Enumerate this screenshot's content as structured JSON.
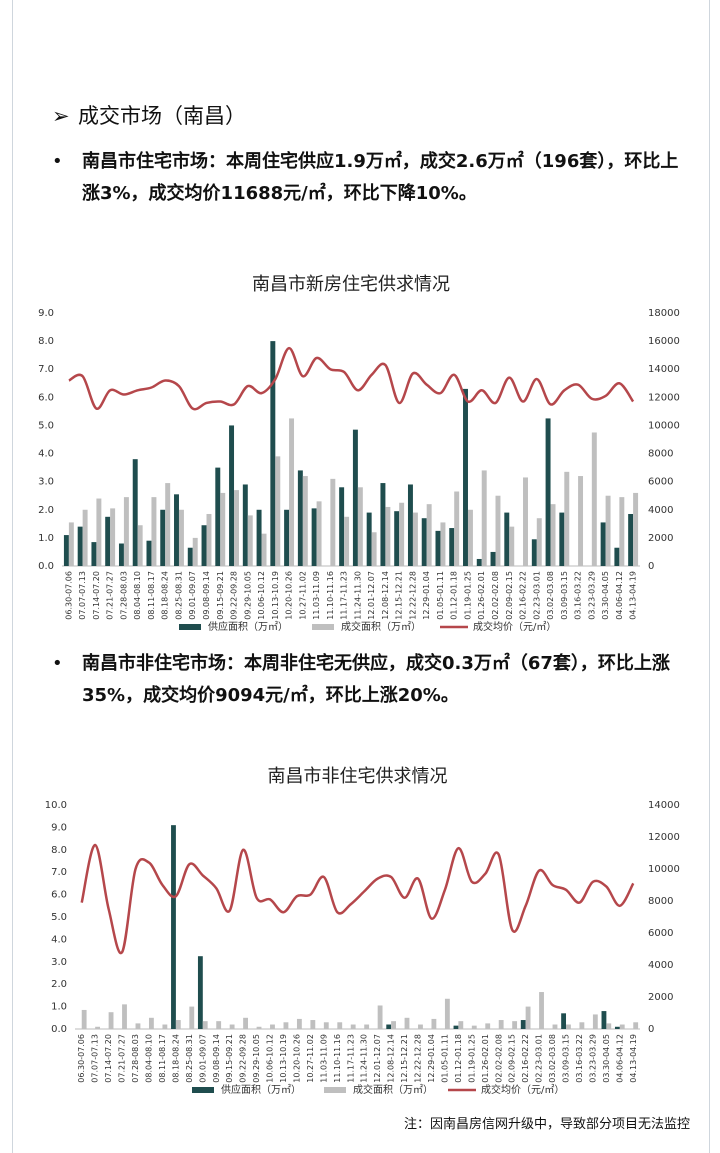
{
  "heading": "成交市场（南昌）",
  "paragraphs": [
    "南昌市住宅市场：本周住宅供应1.9万㎡，成交2.6万㎡（196套），环比上涨3%，成交均价11688元/㎡，环比下降10%。",
    "南昌市非住宅市场：本周非住宅无供应，成交0.3万㎡（67套），环比上涨35%，成交均价9094元/㎡，环比上涨20%。"
  ],
  "note": "注：因南昌房信网升级中，导致部分项目无法监控",
  "chart_data": [
    {
      "type": "combo",
      "title": "南昌市新房住宅供求情况",
      "categories": [
        "06.30-07.06",
        "07.07-07.13",
        "07.14-07.20",
        "07.21-07.27",
        "07.28-08.03",
        "08.04-08.10",
        "08.11-08.17",
        "08.18-08.24",
        "08.25-08.31",
        "09.01-09.07",
        "09.08-09.14",
        "09.15-09.21",
        "09.22-09.28",
        "09.29-10.05",
        "10.06-10.12",
        "10.13-10.19",
        "10.20-10.26",
        "10.27-11.02",
        "11.03-11.09",
        "11.10-11.16",
        "11.17-11.23",
        "11.24-11.30",
        "12.01-12.07",
        "12.08-12.14",
        "12.15-12.21",
        "12.22-12.28",
        "12.29-01.04",
        "01.05-01.11",
        "01.12-01.18",
        "01.19-01.25",
        "01.26-02.01",
        "02.02-02.08",
        "02.09-02.15",
        "02.16-02.22",
        "02.23-03.01",
        "03.02-03.08",
        "03.09-03.15",
        "03.16-03.22",
        "03.23-03.29",
        "03.30-04.05",
        "04.06-04.12",
        "04.13-04.19"
      ],
      "series": [
        {
          "name": "供应面积（万㎡）",
          "type": "bar",
          "color": "#1f4d4e",
          "values": [
            1.1,
            1.4,
            0.85,
            1.75,
            0.8,
            3.8,
            0.9,
            2.0,
            2.55,
            0.65,
            1.45,
            3.5,
            5.0,
            2.9,
            2.0,
            8.0,
            2.0,
            3.4,
            2.05,
            0,
            2.8,
            4.85,
            1.9,
            2.95,
            1.95,
            2.9,
            1.7,
            1.25,
            1.35,
            6.3,
            0.25,
            0.5,
            1.9,
            0,
            0.95,
            5.25,
            1.9,
            0,
            0,
            1.55,
            0.65,
            1.85
          ]
        },
        {
          "name": "成交面积（万㎡）",
          "type": "bar",
          "color": "#bfbfbf",
          "values": [
            1.55,
            2.0,
            2.4,
            2.05,
            2.45,
            1.45,
            2.45,
            2.95,
            2.0,
            1.0,
            1.85,
            2.6,
            2.7,
            1.8,
            1.15,
            3.9,
            5.25,
            3.2,
            2.3,
            3.1,
            1.75,
            2.8,
            1.2,
            2.1,
            2.25,
            1.9,
            2.2,
            1.55,
            2.65,
            2.0,
            3.4,
            2.5,
            1.4,
            3.15,
            1.7,
            2.2,
            3.35,
            3.2,
            4.75,
            2.5,
            2.45,
            2.6
          ]
        },
        {
          "name": "成交均价（元/㎡）",
          "type": "line",
          "axis": "y2",
          "color": "#b5474b",
          "values": [
            13200,
            13500,
            11200,
            12500,
            12200,
            12500,
            12700,
            13200,
            12800,
            11200,
            11600,
            11700,
            11500,
            12800,
            12300,
            13300,
            15500,
            13500,
            14800,
            14000,
            13800,
            12500,
            13600,
            14300,
            11600,
            13700,
            12900,
            12300,
            13600,
            11700,
            12500,
            11600,
            13400,
            11700,
            13300,
            11500,
            12500,
            12900,
            11900,
            12100,
            13000,
            11700
          ]
        }
      ],
      "ylim": [
        0,
        9
      ],
      "yticks": [
        {
          "value": 0,
          "label": "0.0"
        },
        {
          "value": 1,
          "label": "1.0"
        },
        {
          "value": 2,
          "label": "2.0"
        },
        {
          "value": 3,
          "label": "3.0"
        },
        {
          "value": 4,
          "label": "4.0"
        },
        {
          "value": 5,
          "label": "5.0"
        },
        {
          "value": 6,
          "label": "6.0"
        },
        {
          "value": 7,
          "label": "7.0"
        },
        {
          "value": 8,
          "label": "8.0"
        },
        {
          "value": 9,
          "label": "9.0"
        }
      ],
      "y2lim": [
        0,
        18000
      ],
      "y2ticks": [
        0,
        2000,
        4000,
        6000,
        8000,
        10000,
        12000,
        14000,
        16000,
        18000
      ],
      "grid": false,
      "legend": "bottom"
    },
    {
      "type": "combo",
      "title": "南昌市非住宅供求情况",
      "categories": [
        "06.30-07.06",
        "07.07-07.13",
        "07.14-07.20",
        "07.21-07.27",
        "07.28-08.03",
        "08.04-08.10",
        "08.11-08.17",
        "08.18-08.24",
        "08.25-08.31",
        "09.01-09.07",
        "09.08-09.14",
        "09.15-09.21",
        "09.22-09.28",
        "09.29-10.05",
        "10.06-10.12",
        "10.13-10.19",
        "10.20-10.26",
        "10.27-11.02",
        "11.03-11.09",
        "11.10-11.16",
        "11.17-11.23",
        "11.24-11.30",
        "12.01-12.07",
        "12.08-12.14",
        "12.15-12.21",
        "12.22-12.28",
        "12.29-01.04",
        "01.05-01.11",
        "01.12-01.18",
        "01.19-01.25",
        "01.26-02.01",
        "02.02-02.08",
        "02.09-02.15",
        "02.16-02.22",
        "02.23-03.01",
        "03.02-03.08",
        "03.09-03.15",
        "03.16-03.22",
        "03.23-03.29",
        "03.30-04.05",
        "04.06-04.12",
        "04.13-04.19"
      ],
      "series": [
        {
          "name": "供应面积（万㎡）",
          "type": "bar",
          "color": "#1f4d4e",
          "values": [
            0,
            0,
            0,
            0,
            0,
            0,
            0,
            9.1,
            0,
            3.25,
            0,
            0,
            0,
            0,
            0,
            0,
            0,
            0,
            0,
            0,
            0,
            0,
            0,
            0.2,
            0,
            0,
            0,
            0,
            0.15,
            0,
            0,
            0,
            0,
            0.4,
            0,
            0,
            0.7,
            0,
            0,
            0.8,
            0.1,
            0
          ]
        },
        {
          "name": "成交面积（万㎡）",
          "type": "bar",
          "color": "#bfbfbf",
          "values": [
            0.85,
            0.1,
            0.75,
            1.1,
            0.25,
            0.5,
            0.2,
            0.4,
            1.0,
            0.35,
            0.35,
            0.2,
            0.5,
            0.1,
            0.2,
            0.3,
            0.45,
            0.4,
            0.3,
            0.3,
            0.2,
            0.2,
            1.05,
            0.35,
            0.5,
            0.2,
            0.45,
            1.35,
            0.35,
            0.15,
            0.25,
            0.4,
            0.35,
            1.0,
            1.65,
            0.2,
            0.2,
            0.3,
            0.65,
            0.25,
            0.2,
            0.3
          ]
        },
        {
          "name": "成交均价（元/㎡）",
          "type": "line",
          "axis": "y2",
          "color": "#b5474b",
          "values": [
            7900,
            11500,
            7500,
            4800,
            10000,
            10400,
            9000,
            8300,
            10300,
            9600,
            8800,
            7400,
            11200,
            8200,
            8100,
            7300,
            8300,
            8400,
            9500,
            7300,
            7800,
            8600,
            9400,
            9500,
            8200,
            9400,
            6900,
            8700,
            11300,
            9200,
            9700,
            10900,
            6200,
            7700,
            9900,
            9000,
            8700,
            7900,
            9200,
            8900,
            7700,
            9100
          ]
        }
      ],
      "ylim": [
        0,
        10
      ],
      "yticks": [
        {
          "value": 0,
          "label": "0.0"
        },
        {
          "value": 1,
          "label": "1.0"
        },
        {
          "value": 2,
          "label": "2.0"
        },
        {
          "value": 3,
          "label": "3.0"
        },
        {
          "value": 4,
          "label": "4.0"
        },
        {
          "value": 5,
          "label": "5.0"
        },
        {
          "value": 6,
          "label": "6.0"
        },
        {
          "value": 7,
          "label": "7.0"
        },
        {
          "value": 8,
          "label": "8.0"
        },
        {
          "value": 9,
          "label": "9.0"
        },
        {
          "value": 10,
          "label": "10.0"
        }
      ],
      "y2lim": [
        0,
        14000
      ],
      "y2ticks": [
        0,
        2000,
        4000,
        6000,
        8000,
        10000,
        12000,
        14000
      ],
      "grid": false,
      "legend": "bottom"
    }
  ]
}
